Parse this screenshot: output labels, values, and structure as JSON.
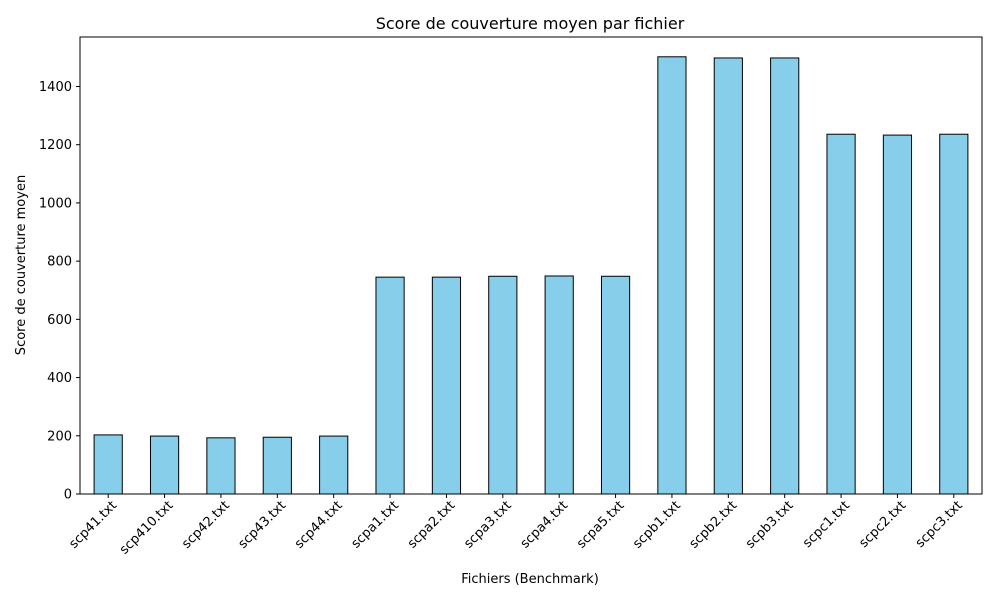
{
  "chart_data": {
    "type": "bar",
    "title": "Score de couverture moyen par fichier",
    "xlabel": "Fichiers (Benchmark)",
    "ylabel": "Score de couverture moyen",
    "categories": [
      "scp41.txt",
      "scp410.txt",
      "scp42.txt",
      "scp43.txt",
      "scp44.txt",
      "scpa1.txt",
      "scpa2.txt",
      "scpa3.txt",
      "scpa4.txt",
      "scpa5.txt",
      "scpb1.txt",
      "scpb2.txt",
      "scpb3.txt",
      "scpc1.txt",
      "scpc2.txt",
      "scpc3.txt"
    ],
    "values": [
      203,
      199,
      193,
      195,
      199,
      745,
      745,
      748,
      749,
      748,
      1502,
      1498,
      1498,
      1236,
      1233,
      1236
    ],
    "ylim": [
      0,
      1570
    ],
    "yticks": [
      0,
      200,
      400,
      600,
      800,
      1000,
      1200,
      1400
    ],
    "bar_color": "#87ceeb",
    "edge_color": "#000000",
    "grid": false,
    "legend": "none"
  }
}
